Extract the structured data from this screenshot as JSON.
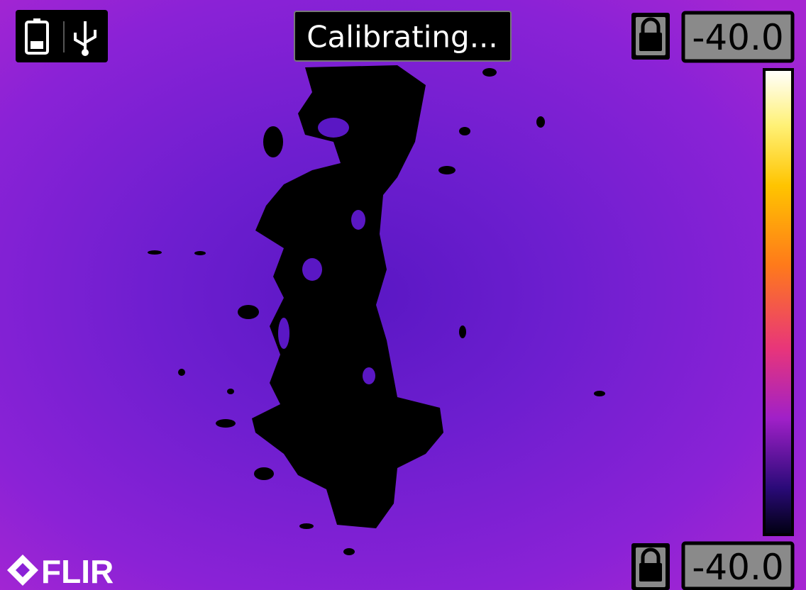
{
  "status": {
    "message": "Calibrating..."
  },
  "scale": {
    "max_label": "-40.0",
    "min_label": "-40.0"
  },
  "brand": "FLIR"
}
